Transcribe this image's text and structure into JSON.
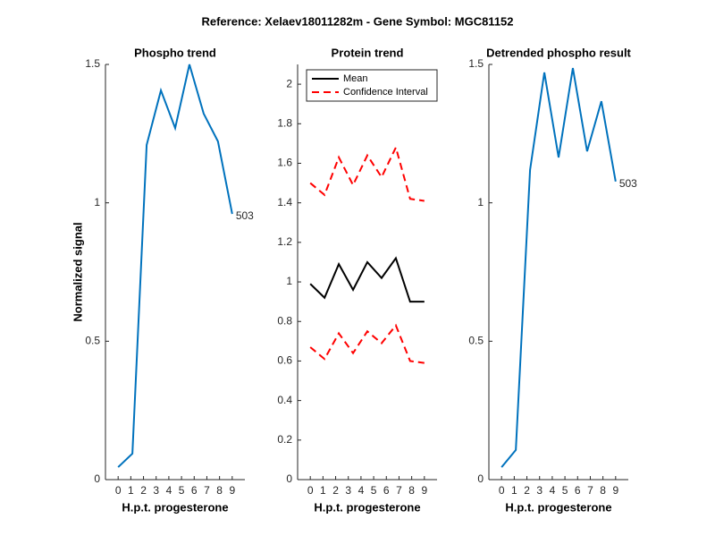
{
  "title": "Reference:  Xelaev18011282m - Gene Symbol:  MGC81152",
  "chart_data": [
    {
      "type": "line",
      "title": "Phospho trend",
      "xlabel": "H.p.t. progesterone",
      "ylabel": "Normalized signal",
      "x": [
        0,
        1.125,
        2.25,
        3.375,
        4.5,
        5.625,
        6.75,
        7.875,
        9
      ],
      "series": [
        {
          "name": "Phospho",
          "color": "#0072bd",
          "values": [
            0.045,
            0.094,
            1.209,
            1.406,
            1.27,
            1.5,
            1.322,
            1.222,
            0.96
          ]
        }
      ],
      "annotation": "503",
      "xlim": [
        -1,
        10
      ],
      "xticks": [
        0,
        1,
        2,
        3,
        4,
        5,
        6,
        7,
        8,
        9
      ],
      "ylim": [
        0,
        1.5
      ],
      "yticks": [
        0,
        0.5,
        1,
        1.5
      ]
    },
    {
      "type": "line",
      "title": "Protein trend",
      "xlabel": "H.p.t. progesterone",
      "legend": "northwest",
      "x": [
        0,
        1.125,
        2.25,
        3.375,
        4.5,
        5.625,
        6.75,
        7.875,
        9
      ],
      "series": [
        {
          "name": "Mean",
          "color": "#000000",
          "values": [
            0.99,
            0.92,
            1.09,
            0.96,
            1.1,
            1.02,
            1.12,
            0.9,
            0.9
          ]
        },
        {
          "name": "Confidence Interval",
          "color": "#ff0000",
          "dashed": true,
          "values": [
            1.5,
            1.44,
            1.63,
            1.49,
            1.64,
            1.53,
            1.68,
            1.42,
            1.41
          ],
          "lower": [
            0.67,
            0.61,
            0.74,
            0.64,
            0.75,
            0.69,
            0.78,
            0.6,
            0.59
          ]
        }
      ],
      "xlim": [
        -1,
        10
      ],
      "xticks": [
        0,
        1,
        2,
        3,
        4,
        5,
        6,
        7,
        8,
        9
      ],
      "ylim": [
        0,
        2.1
      ],
      "yticks": [
        0,
        0.2,
        0.4,
        0.6,
        0.8,
        1,
        1.2,
        1.4,
        1.6,
        1.8,
        2
      ]
    },
    {
      "type": "line",
      "title": "Detrended phospho result",
      "xlabel": "H.p.t. progesterone",
      "x": [
        0,
        1.125,
        2.25,
        3.375,
        4.5,
        5.625,
        6.75,
        7.875,
        9
      ],
      "series": [
        {
          "name": "Detrended phospho",
          "color": "#0072bd",
          "values": [
            0.045,
            0.107,
            1.119,
            1.471,
            1.164,
            1.487,
            1.186,
            1.367,
            1.077
          ]
        }
      ],
      "annotation": "503",
      "xlim": [
        -1,
        10
      ],
      "xticks": [
        0,
        1,
        2,
        3,
        4,
        5,
        6,
        7,
        8,
        9
      ],
      "ylim": [
        0,
        1.5
      ],
      "yticks": [
        0,
        0.5,
        1,
        1.5
      ]
    }
  ]
}
